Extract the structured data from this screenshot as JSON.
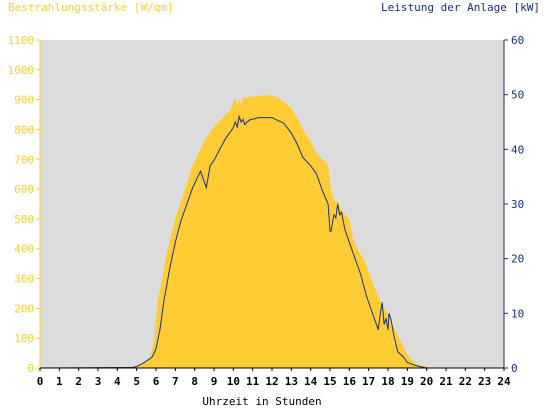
{
  "chart_data": {
    "type": "area",
    "title_left": "Bestrahlungsstärke [W/qm]",
    "title_right": "Leistung der Anlage [kW]",
    "xlabel": "Uhrzeit in Stunden",
    "xlim": [
      0,
      24
    ],
    "ylim_left": [
      0,
      1100
    ],
    "ylim_right": [
      0,
      60
    ],
    "x_ticks": [
      "0",
      "1",
      "2",
      "3",
      "4",
      "5",
      "6",
      "7",
      "8",
      "9",
      "10",
      "11",
      "12",
      "13",
      "14",
      "15",
      "16",
      "17",
      "18",
      "19",
      "20",
      "21",
      "22",
      "23",
      "24"
    ],
    "y_left_ticks": [
      "0",
      "100",
      "200",
      "300",
      "400",
      "500",
      "600",
      "700",
      "800",
      "900",
      "1000",
      "1100"
    ],
    "y_right_ticks": [
      "0",
      "10",
      "20",
      "30",
      "40",
      "50",
      "60"
    ],
    "grid": false,
    "colors": {
      "plot_bg": "#dcdcdc",
      "irradiance_fill": "#ffcc33",
      "power_line": "#1a2f7a",
      "left_axis": "#ffcc33",
      "right_axis": "#1a2f7a",
      "x_axis_text": "#000000"
    },
    "series": [
      {
        "axis": "left",
        "style": "area",
        "x": [
          0,
          5.0,
          5.5,
          5.7,
          5.9,
          6.0,
          6.1,
          6.3,
          6.5,
          6.8,
          7.0,
          7.3,
          7.6,
          7.9,
          8.2,
          8.5,
          8.8,
          9.0,
          9.3,
          9.6,
          9.8,
          10.0,
          10.1,
          10.2,
          10.3,
          10.4,
          10.5,
          10.6,
          10.8,
          11.0,
          11.3,
          11.6,
          11.9,
          12.0,
          12.3,
          12.6,
          13.0,
          13.3,
          13.6,
          14.0,
          14.3,
          14.6,
          14.9,
          15.0,
          15.2,
          15.4,
          15.5,
          15.7,
          16.0,
          16.2,
          16.5,
          16.8,
          17.0,
          17.3,
          17.5,
          17.7,
          17.9,
          18.0,
          18.2,
          18.5,
          18.8,
          19.0,
          19.3,
          19.6,
          20.0,
          20.3,
          20.6,
          21.0,
          24
        ],
        "values": [
          0,
          5,
          20,
          40,
          90,
          160,
          230,
          290,
          370,
          450,
          500,
          560,
          620,
          680,
          720,
          760,
          790,
          810,
          830,
          850,
          860,
          890,
          910,
          880,
          900,
          880,
          910,
          905,
          908,
          910,
          912,
          915,
          915,
          915,
          905,
          895,
          870,
          840,
          800,
          760,
          720,
          700,
          680,
          620,
          560,
          560,
          540,
          520,
          500,
          430,
          390,
          360,
          320,
          270,
          240,
          210,
          190,
          180,
          150,
          110,
          70,
          45,
          20,
          10,
          5,
          0,
          0,
          0,
          0
        ]
      },
      {
        "axis": "right",
        "style": "line",
        "x": [
          0,
          4.8,
          5.0,
          5.3,
          5.6,
          5.8,
          6.0,
          6.2,
          6.4,
          6.7,
          7.0,
          7.3,
          7.6,
          7.9,
          8.1,
          8.3,
          8.4,
          8.6,
          8.8,
          9.0,
          9.3,
          9.6,
          9.8,
          10.0,
          10.1,
          10.2,
          10.3,
          10.4,
          10.5,
          10.6,
          10.7,
          10.9,
          11.0,
          11.3,
          11.6,
          11.9,
          12.0,
          12.3,
          12.6,
          13.0,
          13.3,
          13.6,
          14.0,
          14.3,
          14.6,
          14.9,
          15.0,
          15.05,
          15.2,
          15.3,
          15.4,
          15.5,
          15.6,
          15.7,
          15.8,
          16.0,
          16.3,
          16.6,
          16.9,
          17.2,
          17.5,
          17.6,
          17.7,
          17.8,
          17.9,
          18.0,
          18.05,
          18.15,
          18.3,
          18.5,
          18.8,
          19.0,
          19.3,
          19.6,
          20.0,
          20.3,
          20.6,
          21.0,
          24
        ],
        "values": [
          0,
          0.1,
          0.3,
          0.8,
          1.5,
          2,
          3.5,
          7,
          12,
          18,
          23,
          27,
          30,
          33,
          34.5,
          36,
          35,
          33,
          37,
          38,
          40,
          42,
          43,
          44,
          45,
          44,
          46,
          45,
          45.5,
          44.5,
          45,
          45.5,
          45.5,
          45.8,
          45.8,
          45.8,
          45.8,
          45.3,
          44.8,
          43,
          41,
          38.5,
          37,
          35.5,
          32.5,
          30,
          25,
          25,
          28,
          27.5,
          30,
          28,
          28.5,
          26.5,
          25,
          23,
          20,
          17,
          13,
          10,
          7,
          10,
          12,
          8,
          9,
          7,
          10,
          9,
          6,
          3,
          2,
          1,
          0.6,
          0.3,
          0,
          0,
          0,
          0,
          0
        ]
      }
    ]
  }
}
